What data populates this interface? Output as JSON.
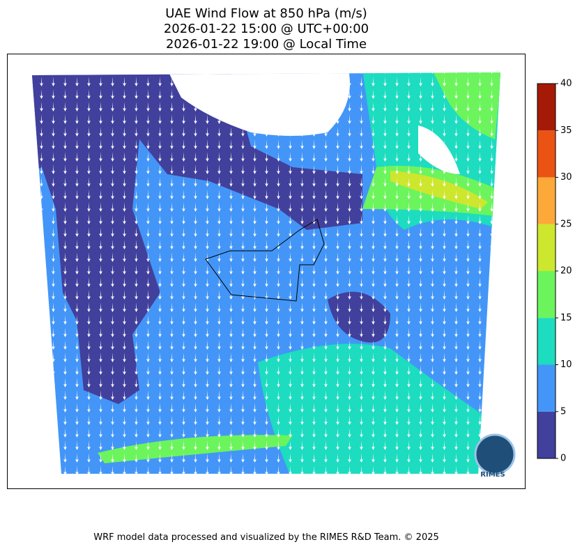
{
  "title": [
    "UAE Wind Flow at 850 hPa (m/s)",
    "2026-01-22 15:00 @ UTC+00:00",
    "2026-01-22 19:00 @ Local Time"
  ],
  "colorbar": {
    "lim": [
      0,
      40
    ],
    "ticks": [
      0,
      5,
      10,
      15,
      20,
      25,
      30,
      35,
      40
    ],
    "colors": [
      "#41409c",
      "#4396f7",
      "#1ddcc0",
      "#6cf45c",
      "#cde62e",
      "#fca93a",
      "#ea5314",
      "#a51a06"
    ]
  },
  "logo": "RIMES",
  "footer": "WRF model data processed and visualized by the RIMES R&D Team. © 2025"
}
